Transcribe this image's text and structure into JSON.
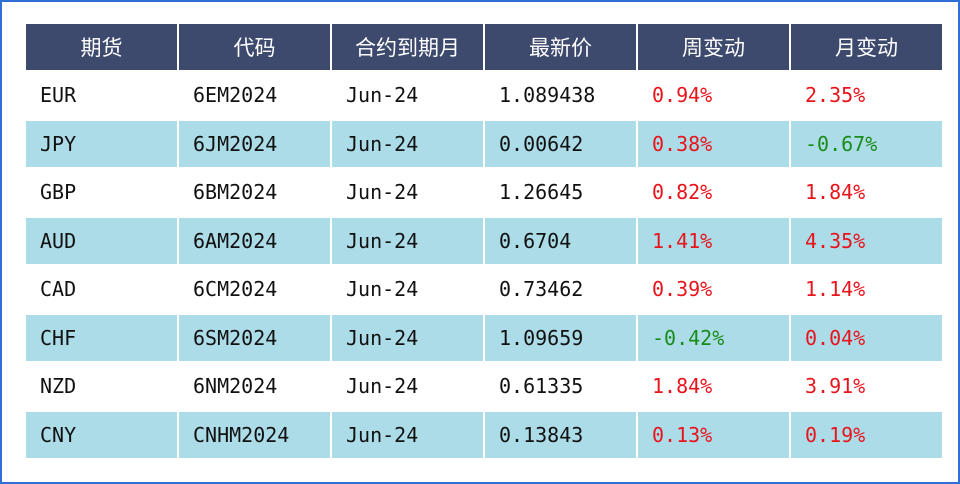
{
  "table": {
    "header": [
      "期货",
      "代码",
      "合约到期月",
      "最新价",
      "周变动",
      "月变动"
    ],
    "rows": [
      [
        "EUR",
        "6EM2024",
        "Jun-24",
        "1.089438",
        "0.94%",
        "2.35%"
      ],
      [
        "JPY",
        "6JM2024",
        "Jun-24",
        "0.00642",
        "0.38%",
        "-0.67%"
      ],
      [
        "GBP",
        "6BM2024",
        "Jun-24",
        "1.26645",
        "0.82%",
        "1.84%"
      ],
      [
        "AUD",
        "6AM2024",
        "Jun-24",
        "0.6704",
        "1.41%",
        "4.35%"
      ],
      [
        "CAD",
        "6CM2024",
        "Jun-24",
        "0.73462",
        "0.39%",
        "1.14%"
      ],
      [
        "CHF",
        "6SM2024",
        "Jun-24",
        "1.09659",
        "-0.42%",
        "0.04%"
      ],
      [
        "NZD",
        "6NM2024",
        "Jun-24",
        "0.61335",
        "1.84%",
        "3.91%"
      ],
      [
        "CNY",
        "CNHM2024",
        "Jun-24",
        "0.13843",
        "0.13%",
        "0.19%"
      ]
    ]
  }
}
